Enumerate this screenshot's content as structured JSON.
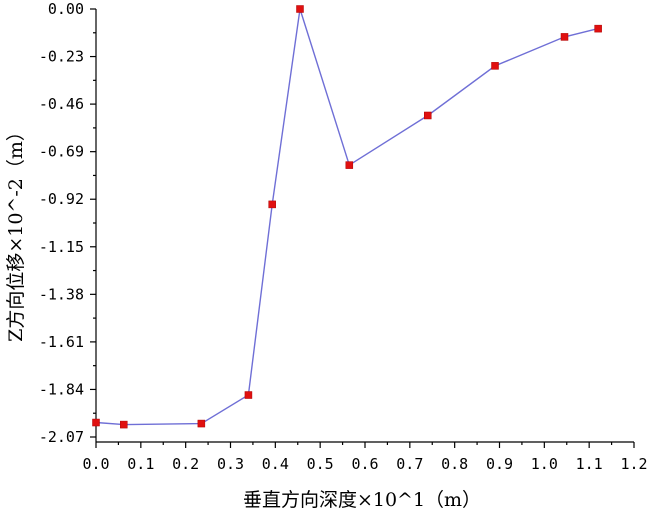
{
  "chart_data": {
    "type": "line",
    "title": "",
    "xlabel": "垂直方向深度×10^1（m）",
    "ylabel": "Z方向位移×10^-2（m）",
    "xlim": [
      0.0,
      1.2
    ],
    "ylim": [
      -2.07,
      0.0
    ],
    "x_ticks": [
      "0.0",
      "0.1",
      "0.2",
      "0.3",
      "0.4",
      "0.5",
      "0.6",
      "0.7",
      "0.8",
      "0.9",
      "1.0",
      "1.1",
      "1.2"
    ],
    "y_ticks": [
      "0.00",
      "-0.23",
      "-0.46",
      "-0.69",
      "-0.92",
      "-1.15",
      "-1.38",
      "-1.61",
      "-1.84",
      "-2.07"
    ],
    "grid": false,
    "series": [
      {
        "x": [
          0.0,
          0.062,
          0.235,
          0.34,
          0.393,
          0.455,
          0.565,
          0.74,
          0.89,
          1.045,
          1.12
        ],
        "y": [
          -2.0,
          -2.01,
          -2.005,
          -1.867,
          -0.945,
          0.0,
          -0.755,
          -0.515,
          -0.275,
          -0.135,
          -0.095
        ]
      }
    ],
    "colors": {
      "line": "#6f6fd6",
      "marker": "#e01010"
    }
  }
}
